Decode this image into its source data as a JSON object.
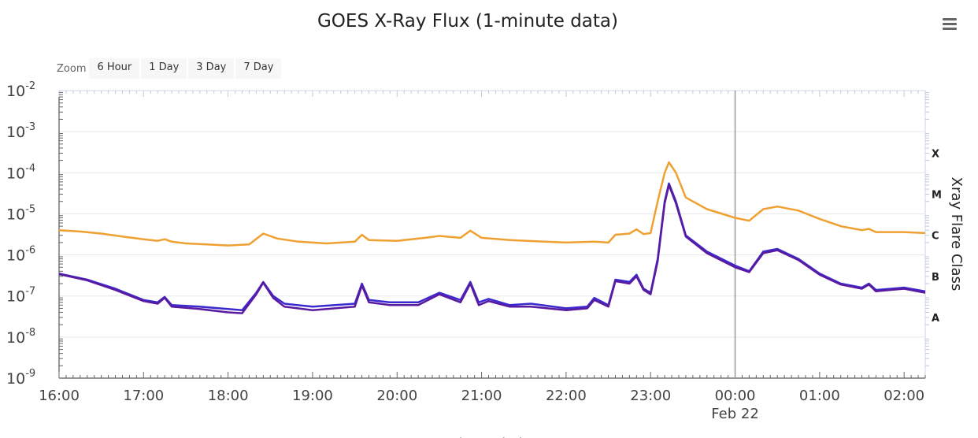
{
  "title": "GOES X-Ray Flux (1-minute data)",
  "zoom": {
    "label": "Zoom",
    "buttons": [
      "6 Hour",
      "1 Day",
      "3 Day",
      "7 Day"
    ]
  },
  "chart_data": {
    "type": "line",
    "title": "GOES X-Ray Flux (1-minute data)",
    "xlabel": "Universal Time",
    "ylabel_right": "Xray Flare Class",
    "y_scale": "log",
    "ylim": [
      1e-09,
      0.01
    ],
    "xlim": [
      "2017-02-21T16:00",
      "2017-02-22T02:15"
    ],
    "x_ticks": [
      "16:00",
      "17:00",
      "18:00",
      "19:00",
      "20:00",
      "21:00",
      "22:00",
      "23:00",
      "00:00",
      "01:00",
      "02:00"
    ],
    "x_date_label": "Feb 22",
    "y_tick_labels": [
      {
        "base": "10",
        "exp": "-2",
        "value": 0.01
      },
      {
        "base": "10",
        "exp": "-3",
        "value": 0.001
      },
      {
        "base": "10",
        "exp": "-4",
        "value": 0.0001
      },
      {
        "base": "10",
        "exp": "-5",
        "value": 1e-05
      },
      {
        "base": "10",
        "exp": "-6",
        "value": 1e-06
      },
      {
        "base": "10",
        "exp": "-7",
        "value": 1e-07
      },
      {
        "base": "10",
        "exp": "-8",
        "value": 1e-08
      },
      {
        "base": "10",
        "exp": "-9",
        "value": 1e-09
      }
    ],
    "flare_classes": [
      {
        "label": "X",
        "value": 0.0003
      },
      {
        "label": "M",
        "value": 3e-05
      },
      {
        "label": "C",
        "value": 3e-06
      },
      {
        "label": "B",
        "value": 3e-07
      },
      {
        "label": "A",
        "value": 3e-08
      }
    ],
    "crosshair_time": "2017-02-22T00:00",
    "grid": true,
    "series": [
      {
        "color": "#f0a030",
        "values": [
          [
            "2017-02-21T16:00",
            4e-06
          ],
          [
            "2017-02-21T16:15",
            3.7e-06
          ],
          [
            "2017-02-21T16:30",
            3.3e-06
          ],
          [
            "2017-02-21T16:45",
            2.8e-06
          ],
          [
            "2017-02-21T17:00",
            2.4e-06
          ],
          [
            "2017-02-21T17:10",
            2.2e-06
          ],
          [
            "2017-02-21T17:15",
            2.4e-06
          ],
          [
            "2017-02-21T17:20",
            2.1e-06
          ],
          [
            "2017-02-21T17:30",
            1.9e-06
          ],
          [
            "2017-02-21T17:45",
            1.8e-06
          ],
          [
            "2017-02-21T18:00",
            1.7e-06
          ],
          [
            "2017-02-21T18:15",
            1.8e-06
          ],
          [
            "2017-02-21T18:25",
            3.3e-06
          ],
          [
            "2017-02-21T18:35",
            2.5e-06
          ],
          [
            "2017-02-21T18:50",
            2.1e-06
          ],
          [
            "2017-02-21T19:10",
            1.9e-06
          ],
          [
            "2017-02-21T19:30",
            2.1e-06
          ],
          [
            "2017-02-21T19:35",
            3.1e-06
          ],
          [
            "2017-02-21T19:40",
            2.3e-06
          ],
          [
            "2017-02-21T20:00",
            2.2e-06
          ],
          [
            "2017-02-21T20:20",
            2.6e-06
          ],
          [
            "2017-02-21T20:30",
            2.9e-06
          ],
          [
            "2017-02-21T20:45",
            2.6e-06
          ],
          [
            "2017-02-21T20:52",
            3.9e-06
          ],
          [
            "2017-02-21T21:00",
            2.6e-06
          ],
          [
            "2017-02-21T21:20",
            2.3e-06
          ],
          [
            "2017-02-21T21:45",
            2.1e-06
          ],
          [
            "2017-02-21T22:00",
            2e-06
          ],
          [
            "2017-02-21T22:20",
            2.1e-06
          ],
          [
            "2017-02-21T22:30",
            2e-06
          ],
          [
            "2017-02-21T22:35",
            3.1e-06
          ],
          [
            "2017-02-21T22:45",
            3.3e-06
          ],
          [
            "2017-02-21T22:50",
            4.2e-06
          ],
          [
            "2017-02-21T22:55",
            3.2e-06
          ],
          [
            "2017-02-21T23:00",
            3.4e-06
          ],
          [
            "2017-02-21T23:05",
            2e-05
          ],
          [
            "2017-02-21T23:10",
            0.0001
          ],
          [
            "2017-02-21T23:13",
            0.00018
          ],
          [
            "2017-02-21T23:18",
            0.0001
          ],
          [
            "2017-02-21T23:25",
            2.5e-05
          ],
          [
            "2017-02-21T23:40",
            1.3e-05
          ],
          [
            "2017-02-22T00:00",
            8e-06
          ],
          [
            "2017-02-22T00:10",
            6.8e-06
          ],
          [
            "2017-02-22T00:20",
            1.3e-05
          ],
          [
            "2017-02-22T00:30",
            1.5e-05
          ],
          [
            "2017-02-22T00:45",
            1.2e-05
          ],
          [
            "2017-02-22T01:00",
            7.5e-06
          ],
          [
            "2017-02-22T01:15",
            5e-06
          ],
          [
            "2017-02-22T01:30",
            4e-06
          ],
          [
            "2017-02-22T01:35",
            4.3e-06
          ],
          [
            "2017-02-22T01:40",
            3.6e-06
          ],
          [
            "2017-02-22T02:00",
            3.6e-06
          ],
          [
            "2017-02-22T02:15",
            3.4e-06
          ]
        ]
      },
      {
        "color": "#3a2ad0",
        "values": [
          [
            "2017-02-21T16:00",
            3.5e-07
          ],
          [
            "2017-02-21T16:20",
            2.5e-07
          ],
          [
            "2017-02-21T16:40",
            1.5e-07
          ],
          [
            "2017-02-21T17:00",
            8e-08
          ],
          [
            "2017-02-21T17:10",
            7e-08
          ],
          [
            "2017-02-21T17:15",
            9.5e-08
          ],
          [
            "2017-02-21T17:20",
            6e-08
          ],
          [
            "2017-02-21T17:40",
            5.5e-08
          ],
          [
            "2017-02-21T18:00",
            4.8e-08
          ],
          [
            "2017-02-21T18:10",
            4.5e-08
          ],
          [
            "2017-02-21T18:20",
            1.2e-07
          ],
          [
            "2017-02-21T18:25",
            2.2e-07
          ],
          [
            "2017-02-21T18:32",
            1e-07
          ],
          [
            "2017-02-21T18:40",
            6.5e-08
          ],
          [
            "2017-02-21T19:00",
            5.5e-08
          ],
          [
            "2017-02-21T19:30",
            6.5e-08
          ],
          [
            "2017-02-21T19:35",
            2e-07
          ],
          [
            "2017-02-21T19:40",
            8e-08
          ],
          [
            "2017-02-21T19:55",
            7e-08
          ],
          [
            "2017-02-21T20:15",
            7e-08
          ],
          [
            "2017-02-21T20:30",
            1.2e-07
          ],
          [
            "2017-02-21T20:45",
            8e-08
          ],
          [
            "2017-02-21T20:52",
            2.2e-07
          ],
          [
            "2017-02-21T20:58",
            7e-08
          ],
          [
            "2017-02-21T21:05",
            8.5e-08
          ],
          [
            "2017-02-21T21:20",
            6e-08
          ],
          [
            "2017-02-21T21:35",
            6.5e-08
          ],
          [
            "2017-02-21T22:00",
            5e-08
          ],
          [
            "2017-02-21T22:15",
            5.5e-08
          ],
          [
            "2017-02-21T22:20",
            9e-08
          ],
          [
            "2017-02-21T22:30",
            6e-08
          ],
          [
            "2017-02-21T22:35",
            2.5e-07
          ],
          [
            "2017-02-21T22:45",
            2.2e-07
          ],
          [
            "2017-02-21T22:50",
            3.3e-07
          ],
          [
            "2017-02-21T22:55",
            1.5e-07
          ],
          [
            "2017-02-21T23:00",
            1.2e-07
          ],
          [
            "2017-02-21T23:05",
            8e-07
          ],
          [
            "2017-02-21T23:10",
            2e-05
          ],
          [
            "2017-02-21T23:13",
            5.5e-05
          ],
          [
            "2017-02-21T23:18",
            2e-05
          ],
          [
            "2017-02-21T23:25",
            3e-06
          ],
          [
            "2017-02-21T23:40",
            1.2e-06
          ],
          [
            "2017-02-22T00:00",
            5.5e-07
          ],
          [
            "2017-02-22T00:10",
            4e-07
          ],
          [
            "2017-02-22T00:20",
            1.2e-06
          ],
          [
            "2017-02-22T00:30",
            1.4e-06
          ],
          [
            "2017-02-22T00:45",
            8e-07
          ],
          [
            "2017-02-22T01:00",
            3.5e-07
          ],
          [
            "2017-02-22T01:15",
            2e-07
          ],
          [
            "2017-02-22T01:30",
            1.6e-07
          ],
          [
            "2017-02-22T01:35",
            2e-07
          ],
          [
            "2017-02-22T01:40",
            1.4e-07
          ],
          [
            "2017-02-22T02:00",
            1.6e-07
          ],
          [
            "2017-02-22T02:15",
            1.3e-07
          ]
        ]
      },
      {
        "color": "#5a1aa0",
        "values": [
          [
            "2017-02-21T16:00",
            3.4e-07
          ],
          [
            "2017-02-21T16:20",
            2.4e-07
          ],
          [
            "2017-02-21T16:40",
            1.4e-07
          ],
          [
            "2017-02-21T17:00",
            7.5e-08
          ],
          [
            "2017-02-21T17:10",
            6.5e-08
          ],
          [
            "2017-02-21T17:15",
            9e-08
          ],
          [
            "2017-02-21T17:20",
            5.5e-08
          ],
          [
            "2017-02-21T17:40",
            4.8e-08
          ],
          [
            "2017-02-21T18:00",
            4e-08
          ],
          [
            "2017-02-21T18:10",
            3.8e-08
          ],
          [
            "2017-02-21T18:20",
            1.1e-07
          ],
          [
            "2017-02-21T18:25",
            2.1e-07
          ],
          [
            "2017-02-21T18:32",
            9e-08
          ],
          [
            "2017-02-21T18:40",
            5.5e-08
          ],
          [
            "2017-02-21T19:00",
            4.5e-08
          ],
          [
            "2017-02-21T19:30",
            5.5e-08
          ],
          [
            "2017-02-21T19:35",
            1.8e-07
          ],
          [
            "2017-02-21T19:40",
            7e-08
          ],
          [
            "2017-02-21T19:55",
            6e-08
          ],
          [
            "2017-02-21T20:15",
            6e-08
          ],
          [
            "2017-02-21T20:30",
            1.1e-07
          ],
          [
            "2017-02-21T20:45",
            7e-08
          ],
          [
            "2017-02-21T20:52",
            2e-07
          ],
          [
            "2017-02-21T20:58",
            6e-08
          ],
          [
            "2017-02-21T21:05",
            7.5e-08
          ],
          [
            "2017-02-21T21:20",
            5.5e-08
          ],
          [
            "2017-02-21T21:35",
            5.5e-08
          ],
          [
            "2017-02-21T22:00",
            4.5e-08
          ],
          [
            "2017-02-21T22:15",
            5e-08
          ],
          [
            "2017-02-21T22:20",
            8e-08
          ],
          [
            "2017-02-21T22:30",
            5.5e-08
          ],
          [
            "2017-02-21T22:35",
            2.3e-07
          ],
          [
            "2017-02-21T22:45",
            2e-07
          ],
          [
            "2017-02-21T22:50",
            3e-07
          ],
          [
            "2017-02-21T22:55",
            1.4e-07
          ],
          [
            "2017-02-21T23:00",
            1.1e-07
          ],
          [
            "2017-02-21T23:05",
            7e-07
          ],
          [
            "2017-02-21T23:10",
            1.8e-05
          ],
          [
            "2017-02-21T23:13",
            5e-05
          ],
          [
            "2017-02-21T23:18",
            1.8e-05
          ],
          [
            "2017-02-21T23:25",
            2.8e-06
          ],
          [
            "2017-02-21T23:40",
            1.1e-06
          ],
          [
            "2017-02-22T00:00",
            5e-07
          ],
          [
            "2017-02-22T00:10",
            3.8e-07
          ],
          [
            "2017-02-22T00:20",
            1.1e-06
          ],
          [
            "2017-02-22T00:30",
            1.3e-06
          ],
          [
            "2017-02-22T00:45",
            7.5e-07
          ],
          [
            "2017-02-22T01:00",
            3.3e-07
          ],
          [
            "2017-02-22T01:15",
            1.9e-07
          ],
          [
            "2017-02-22T01:30",
            1.5e-07
          ],
          [
            "2017-02-22T01:35",
            1.9e-07
          ],
          [
            "2017-02-22T01:40",
            1.3e-07
          ],
          [
            "2017-02-22T02:00",
            1.5e-07
          ],
          [
            "2017-02-22T02:15",
            1.2e-07
          ]
        ]
      }
    ]
  }
}
